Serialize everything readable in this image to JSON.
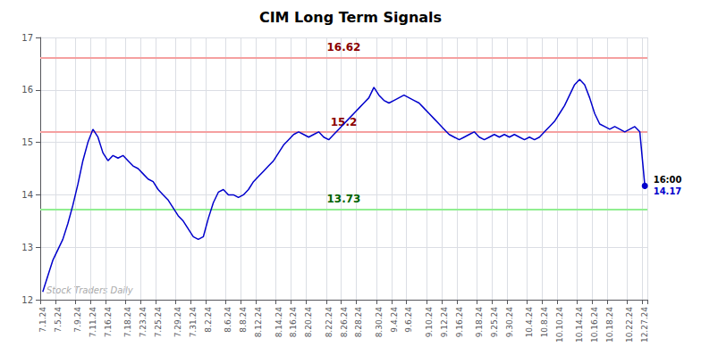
{
  "chart_data": {
    "type": "line",
    "title": "CIM Long Term Signals",
    "color": "#0000cc",
    "grid": true,
    "ylim": [
      12,
      17
    ],
    "yticks": [
      12,
      13,
      14,
      15,
      16,
      17
    ],
    "categories": [
      "7.1.24",
      null,
      null,
      "7.5.24",
      null,
      null,
      null,
      "7.9.24",
      null,
      null,
      "7.11.24",
      null,
      null,
      "7.16.24",
      null,
      null,
      null,
      "7.18.24",
      null,
      null,
      "7.23.24",
      null,
      null,
      "7.25.24",
      null,
      null,
      null,
      "7.29.24",
      null,
      null,
      "7.31.24",
      null,
      null,
      "8.2.24",
      null,
      null,
      null,
      "8.6.24",
      null,
      null,
      "8.8.24",
      null,
      null,
      "8.12.24",
      null,
      null,
      null,
      "8.14.24",
      null,
      null,
      "8.16.24",
      null,
      null,
      "8.20.24",
      null,
      null,
      null,
      "8.22.24",
      null,
      null,
      "8.26.24",
      null,
      null,
      "8.28.24",
      null,
      null,
      null,
      "8.30.24",
      null,
      null,
      "9.4.24",
      null,
      null,
      "9.6.24",
      null,
      null,
      null,
      "9.10.24",
      null,
      null,
      "9.12.24",
      null,
      null,
      "9.16.24",
      null,
      null,
      null,
      "9.18.24",
      null,
      null,
      "9.25.24",
      null,
      null,
      "9.30.24",
      null,
      null,
      null,
      "10.4.24",
      null,
      null,
      "10.8.24",
      null,
      null,
      "10.10.24",
      null,
      null,
      null,
      "10.14.24",
      null,
      null,
      "10.16.24",
      null,
      null,
      "10.18.24",
      null,
      null,
      null,
      "10.22.24",
      null,
      null,
      "12.27.24"
    ],
    "values": [
      12.15,
      12.45,
      12.75,
      12.95,
      13.15,
      13.45,
      13.8,
      14.2,
      14.65,
      15.0,
      15.25,
      15.1,
      14.8,
      14.65,
      14.75,
      14.7,
      14.75,
      14.65,
      14.55,
      14.5,
      14.4,
      14.3,
      14.25,
      14.1,
      14.0,
      13.9,
      13.75,
      13.6,
      13.5,
      13.35,
      13.2,
      13.15,
      13.2,
      13.55,
      13.85,
      14.05,
      14.1,
      14.0,
      14.0,
      13.95,
      14.0,
      14.1,
      14.25,
      14.35,
      14.45,
      14.55,
      14.65,
      14.8,
      14.95,
      15.05,
      15.15,
      15.2,
      15.15,
      15.1,
      15.15,
      15.2,
      15.1,
      15.05,
      15.15,
      15.25,
      15.35,
      15.45,
      15.55,
      15.65,
      15.75,
      15.85,
      16.05,
      15.9,
      15.8,
      15.75,
      15.8,
      15.85,
      15.9,
      15.85,
      15.8,
      15.75,
      15.65,
      15.55,
      15.45,
      15.35,
      15.25,
      15.15,
      15.1,
      15.05,
      15.1,
      15.15,
      15.2,
      15.1,
      15.05,
      15.1,
      15.15,
      15.1,
      15.15,
      15.1,
      15.15,
      15.1,
      15.05,
      15.1,
      15.05,
      15.1,
      15.2,
      15.3,
      15.4,
      15.55,
      15.7,
      15.9,
      16.1,
      16.2,
      16.1,
      15.85,
      15.55,
      15.35,
      15.3,
      15.25,
      15.3,
      15.25,
      15.2,
      15.25,
      15.3,
      15.2,
      14.17
    ],
    "hlines": [
      {
        "value": 16.62,
        "label": "16.62",
        "color": "#f5a0a0",
        "label_color": "#8b0000"
      },
      {
        "value": 15.2,
        "label": "15.2",
        "color": "#f5a0a0",
        "label_color": "#8b0000"
      },
      {
        "value": 13.73,
        "label": "13.73",
        "color": "#90ee90",
        "label_color": "#006400"
      }
    ],
    "last_point": {
      "label": "16:00",
      "value": 14.17
    },
    "watermark": "Stock Traders Daily"
  }
}
